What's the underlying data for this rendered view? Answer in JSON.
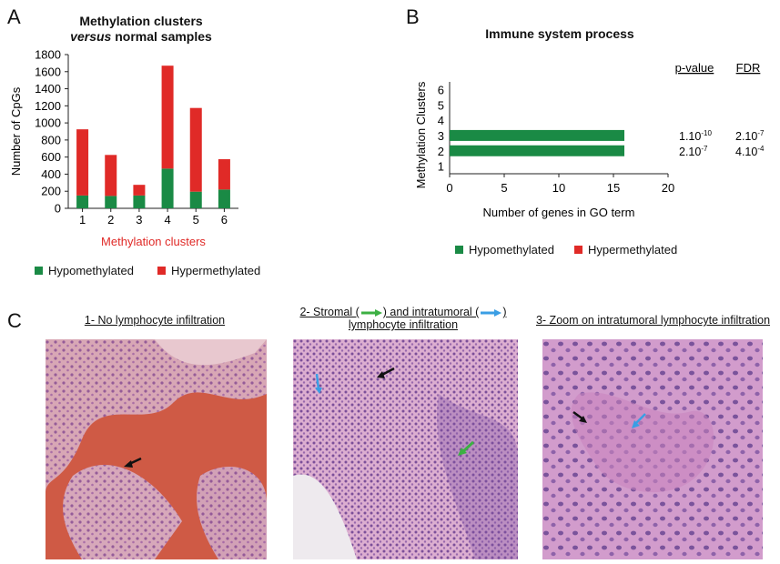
{
  "panels": {
    "a": "A",
    "b": "B",
    "c": "C"
  },
  "chart_data": [
    {
      "type": "bar",
      "title_line1": "Methylation clusters",
      "title_line2_italic": "versus",
      "title_line2_rest": " normal samples",
      "xlabel": "Methylation clusters",
      "ylabel": "Number of CpGs",
      "categories": [
        "1",
        "2",
        "3",
        "4",
        "5",
        "6"
      ],
      "ylim": [
        0,
        1800
      ],
      "yticks": [
        0,
        200,
        400,
        600,
        800,
        1000,
        1200,
        1400,
        1600,
        1800
      ],
      "stacked": true,
      "series": [
        {
          "name": "Hypomethylated",
          "color": "#1a8a45",
          "values": [
            150,
            145,
            150,
            465,
            195,
            220
          ]
        },
        {
          "name": "Hypermethylated",
          "color": "#e02a27",
          "values": [
            775,
            480,
            125,
            1205,
            980,
            355
          ]
        }
      ],
      "legend_position": "bottom"
    },
    {
      "type": "bar",
      "orientation": "horizontal",
      "title": "Immune system process",
      "xlabel": "Number of genes in GO term",
      "ylabel": "Methylation Clusters",
      "categories": [
        "1",
        "2",
        "3",
        "4",
        "5",
        "6"
      ],
      "xlim": [
        0,
        20
      ],
      "xticks": [
        0,
        5,
        10,
        15,
        20
      ],
      "series": [
        {
          "name": "Hypomethylated",
          "color": "#1a8a45",
          "values": [
            0,
            16,
            16,
            0,
            0,
            0
          ]
        },
        {
          "name": "Hypermethylated",
          "color": "#e02a27",
          "values": [
            0,
            0,
            0,
            0,
            0,
            0
          ]
        }
      ],
      "table_headers": {
        "pvalue": "p-value",
        "fdr": "FDR"
      },
      "table_rows": [
        {
          "cluster": "3",
          "p_base": "1.10",
          "p_exp": "-10",
          "f_base": "2.10",
          "f_exp": "-7"
        },
        {
          "cluster": "2",
          "p_base": "2.10",
          "p_exp": "-7",
          "f_base": "4.10",
          "f_exp": "-4"
        }
      ],
      "legend_position": "bottom"
    }
  ],
  "images": {
    "cap1": "1- No lymphocyte infiltration",
    "cap2_a": "2- Stromal (",
    "cap2_b": ") and intratumoral (",
    "cap2_c": ")",
    "cap2_line2": "lymphocyte infiltration",
    "cap3": "3- Zoom on intratumoral lymphocyte infiltration"
  },
  "colors": {
    "green_arrow": "#3cb043",
    "blue_arrow": "#3a9ee4",
    "black_arrow": "#111111"
  }
}
